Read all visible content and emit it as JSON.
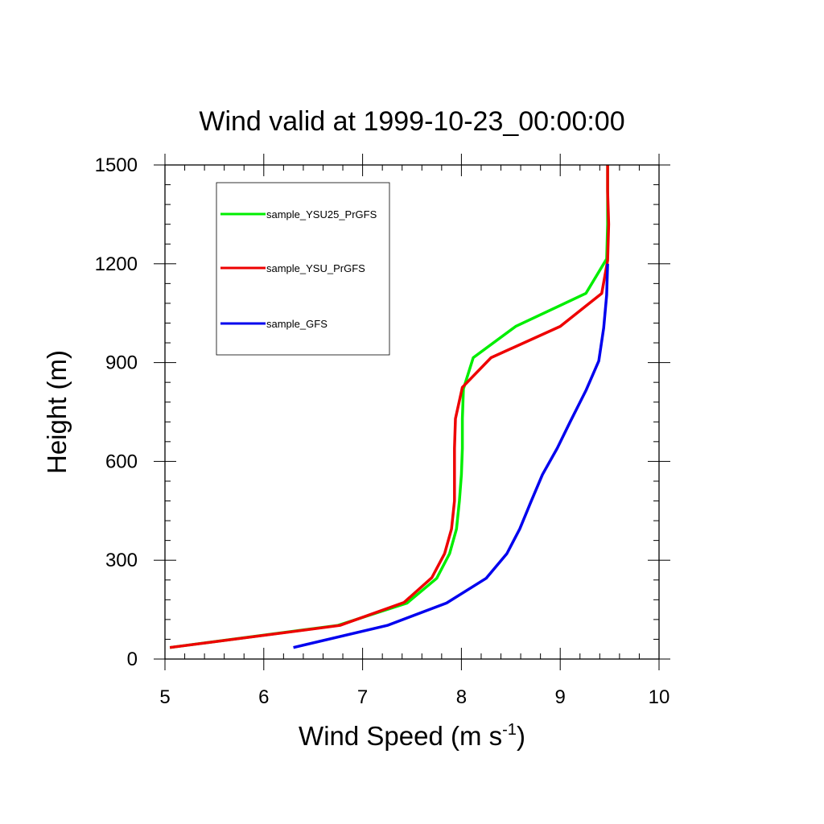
{
  "chart_data": {
    "type": "line",
    "title": "Wind valid at 1999-10-23_00:00:00",
    "xlabel": "Wind Speed (m s",
    "xlabel_sup": "-1",
    "xlabel_close": ")",
    "ylabel": "Height (m)",
    "xlim": [
      5,
      10
    ],
    "ylim": [
      0,
      1500
    ],
    "xticks": [
      "5",
      "6",
      "7",
      "8",
      "9",
      "10"
    ],
    "yticks": [
      "0",
      "300",
      "600",
      "900",
      "1200",
      "1500"
    ],
    "grid": false,
    "legend_position": "top-left",
    "series": [
      {
        "name": "sample_YSU25_PrGFS",
        "color": "#00ee00",
        "points": [
          [
            5.05,
            35
          ],
          [
            6.75,
            102
          ],
          [
            7.45,
            170
          ],
          [
            7.75,
            245
          ],
          [
            7.88,
            320
          ],
          [
            7.95,
            395
          ],
          [
            7.98,
            480
          ],
          [
            8.0,
            560
          ],
          [
            8.01,
            640
          ],
          [
            8.01,
            730
          ],
          [
            8.02,
            820
          ],
          [
            8.12,
            915
          ],
          [
            8.55,
            1010
          ],
          [
            9.26,
            1110
          ],
          [
            9.47,
            1215
          ],
          [
            9.48,
            1320
          ],
          [
            9.48,
            1420
          ],
          [
            9.48,
            1500
          ]
        ]
      },
      {
        "name": "sample_YSU_PrGFS",
        "color": "#ee0000",
        "points": [
          [
            5.05,
            35
          ],
          [
            6.77,
            102
          ],
          [
            7.42,
            172
          ],
          [
            7.7,
            247
          ],
          [
            7.83,
            320
          ],
          [
            7.9,
            395
          ],
          [
            7.93,
            480
          ],
          [
            7.93,
            560
          ],
          [
            7.93,
            640
          ],
          [
            7.94,
            730
          ],
          [
            8.01,
            825
          ],
          [
            8.3,
            915
          ],
          [
            9.0,
            1010
          ],
          [
            9.42,
            1110
          ],
          [
            9.48,
            1210
          ],
          [
            9.49,
            1320
          ],
          [
            9.48,
            1420
          ],
          [
            9.48,
            1500
          ]
        ]
      },
      {
        "name": "sample_GFS",
        "color": "#0000ee",
        "points": [
          [
            6.3,
            35
          ],
          [
            7.25,
            102
          ],
          [
            7.85,
            170
          ],
          [
            8.25,
            245
          ],
          [
            8.46,
            320
          ],
          [
            8.59,
            395
          ],
          [
            8.7,
            475
          ],
          [
            8.82,
            560
          ],
          [
            8.97,
            640
          ],
          [
            9.1,
            720
          ],
          [
            9.26,
            815
          ],
          [
            9.39,
            905
          ],
          [
            9.44,
            1005
          ],
          [
            9.47,
            1105
          ],
          [
            9.48,
            1200
          ]
        ]
      }
    ]
  }
}
